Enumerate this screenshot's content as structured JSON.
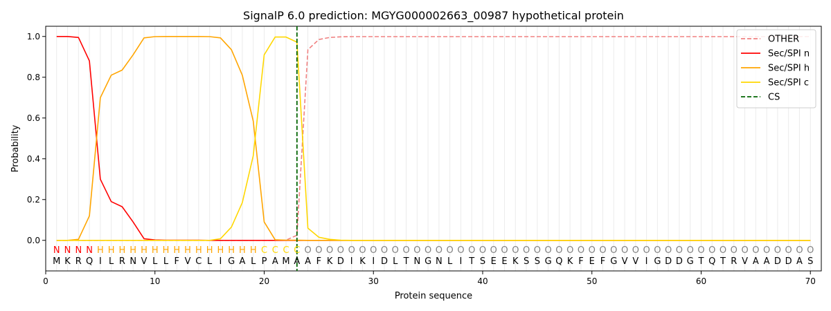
{
  "chart_data": {
    "type": "line",
    "title": "SignalP 6.0 prediction: MGYG000002663_00987 hypothetical protein",
    "xlabel": "Protein sequence",
    "ylabel": "Probability",
    "xlim": [
      0,
      71
    ],
    "ylim": [
      -0.15,
      1.05
    ],
    "xticks": [
      0,
      10,
      20,
      30,
      40,
      50,
      60,
      70
    ],
    "yticks": [
      0.0,
      0.2,
      0.4,
      0.6,
      0.8,
      1.0
    ],
    "legend_position": "top-right",
    "positions": [
      1,
      2,
      3,
      4,
      5,
      6,
      7,
      8,
      9,
      10,
      11,
      12,
      13,
      14,
      15,
      16,
      17,
      18,
      19,
      20,
      21,
      22,
      23,
      24,
      25,
      26,
      27,
      28,
      29,
      30,
      31,
      32,
      33,
      34,
      35,
      36,
      37,
      38,
      39,
      40,
      41,
      42,
      43,
      44,
      45,
      46,
      47,
      48,
      49,
      50,
      51,
      52,
      53,
      54,
      55,
      56,
      57,
      58,
      59,
      60,
      61,
      62,
      63,
      64,
      65,
      66,
      67,
      68,
      69,
      70
    ],
    "sequence": [
      "M",
      "K",
      "R",
      "Q",
      "I",
      "L",
      "R",
      "N",
      "V",
      "L",
      "L",
      "F",
      "V",
      "C",
      "L",
      "I",
      "G",
      "A",
      "L",
      "P",
      "A",
      "M",
      "A",
      "A",
      "F",
      "K",
      "D",
      "I",
      "K",
      "I",
      "D",
      "L",
      "T",
      "N",
      "G",
      "N",
      "L",
      "I",
      "T",
      "S",
      "E",
      "E",
      "K",
      "S",
      "S",
      "G",
      "Q",
      "K",
      "F",
      "E",
      "F",
      "G",
      "V",
      "V",
      "I",
      "G",
      "D",
      "D",
      "G",
      "T",
      "Q",
      "T",
      "R",
      "V",
      "A",
      "A",
      "D",
      "D",
      "A",
      "S"
    ],
    "region_labels": [
      "N",
      "N",
      "N",
      "N",
      "H",
      "H",
      "H",
      "H",
      "H",
      "H",
      "H",
      "H",
      "H",
      "H",
      "H",
      "H",
      "H",
      "H",
      "H",
      "C",
      "C",
      "C",
      "C",
      "O",
      "O",
      "O",
      "O",
      "O",
      "O",
      "O",
      "O",
      "O",
      "O",
      "O",
      "O",
      "O",
      "O",
      "O",
      "O",
      "O",
      "O",
      "O",
      "O",
      "O",
      "O",
      "O",
      "O",
      "O",
      "O",
      "O",
      "O",
      "O",
      "O",
      "O",
      "O",
      "O",
      "O",
      "O",
      "O",
      "O",
      "O",
      "O",
      "O",
      "O",
      "O",
      "O",
      "O",
      "O",
      "O",
      "O"
    ],
    "region_colors": {
      "N": "#ff0000",
      "H": "#ffa500",
      "C": "#ffd700",
      "O": "#808080"
    },
    "series": [
      {
        "name": "OTHER",
        "color": "#f08080",
        "dashed": true,
        "values": [
          0,
          0,
          0,
          0,
          0,
          0,
          0,
          0,
          0,
          0,
          0,
          0,
          0,
          0,
          0,
          0,
          0,
          0,
          0,
          0,
          0,
          0.001,
          0.025,
          0.935,
          0.985,
          0.995,
          0.998,
          0.999,
          0.999,
          0.999,
          0.999,
          0.999,
          0.999,
          0.999,
          0.999,
          0.999,
          0.999,
          0.999,
          0.999,
          0.999,
          0.999,
          0.999,
          0.999,
          0.999,
          0.999,
          0.999,
          0.999,
          0.999,
          0.999,
          0.999,
          0.999,
          0.999,
          0.999,
          0.999,
          0.999,
          0.999,
          0.999,
          0.999,
          0.999,
          0.999,
          0.999,
          0.999,
          0.999,
          0.999,
          0.999,
          0.999,
          0.999,
          0.999,
          0.999,
          0.999
        ]
      },
      {
        "name": "Sec/SPI n",
        "color": "#ff0000",
        "dashed": false,
        "values": [
          1.0,
          1.0,
          0.995,
          0.88,
          0.3,
          0.19,
          0.165,
          0.09,
          0.008,
          0.002,
          0.001,
          0.001,
          0.001,
          0.001,
          0.0,
          0,
          0,
          0,
          0,
          0,
          0,
          0,
          0,
          0,
          0,
          0,
          0,
          0,
          0,
          0,
          0,
          0,
          0,
          0,
          0,
          0,
          0,
          0,
          0,
          0,
          0,
          0,
          0,
          0,
          0,
          0,
          0,
          0,
          0,
          0,
          0,
          0,
          0,
          0,
          0,
          0,
          0,
          0,
          0,
          0,
          0,
          0,
          0,
          0,
          0,
          0,
          0,
          0,
          0,
          0
        ]
      },
      {
        "name": "Sec/SPI h",
        "color": "#ffa500",
        "dashed": false,
        "values": [
          0.0,
          0.0,
          0.005,
          0.12,
          0.7,
          0.81,
          0.835,
          0.91,
          0.993,
          0.999,
          1.0,
          1.0,
          1.0,
          1.0,
          0.999,
          0.993,
          0.935,
          0.81,
          0.585,
          0.09,
          0.003,
          0.001,
          0.001,
          0,
          0,
          0,
          0,
          0,
          0,
          0,
          0,
          0,
          0,
          0,
          0,
          0,
          0,
          0,
          0,
          0,
          0,
          0,
          0,
          0,
          0,
          0,
          0,
          0,
          0,
          0,
          0,
          0,
          0,
          0,
          0,
          0,
          0,
          0,
          0,
          0,
          0,
          0,
          0,
          0,
          0,
          0,
          0,
          0,
          0,
          0
        ]
      },
      {
        "name": "Sec/SPI c",
        "color": "#ffd700",
        "dashed": false,
        "values": [
          0,
          0,
          0,
          0,
          0,
          0,
          0,
          0,
          0,
          0,
          0,
          0,
          0,
          0,
          0,
          0.008,
          0.065,
          0.185,
          0.415,
          0.91,
          0.997,
          0.997,
          0.972,
          0.06,
          0.015,
          0.005,
          0.001,
          0,
          0,
          0,
          0,
          0,
          0,
          0,
          0,
          0,
          0,
          0,
          0,
          0,
          0,
          0,
          0,
          0,
          0,
          0,
          0,
          0,
          0,
          0,
          0,
          0,
          0,
          0,
          0,
          0,
          0,
          0,
          0,
          0,
          0,
          0,
          0,
          0,
          0,
          0,
          0,
          0,
          0,
          0
        ]
      }
    ],
    "cs_line": {
      "name": "CS",
      "x": 23,
      "color": "#006400"
    }
  }
}
